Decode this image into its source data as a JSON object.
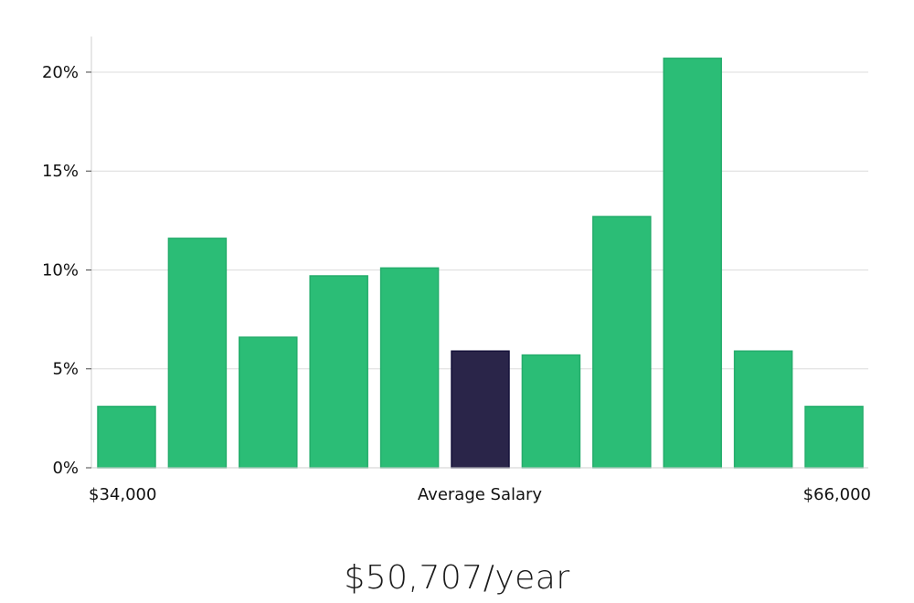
{
  "chart_data": {
    "type": "bar",
    "title": "",
    "xlabel": "Average Salary",
    "ylabel": "",
    "x_range_labels": {
      "min": "$34,000",
      "max": "$66,000"
    },
    "ylim": [
      0,
      21.8
    ],
    "yticks": [
      0,
      5,
      10,
      15,
      20
    ],
    "ytick_labels": [
      "0%",
      "5%",
      "10%",
      "15%",
      "20%"
    ],
    "grid": true,
    "values": [
      3.1,
      11.6,
      6.6,
      9.7,
      10.1,
      5.9,
      5.7,
      12.7,
      20.7,
      5.9,
      3.1
    ],
    "highlight_index": 5,
    "colors": {
      "bar": "#2bbd76",
      "bar_border": "#25ad6c",
      "highlight": "#2a2549",
      "highlight_border": "#15123a",
      "grid": "#dcdcdc",
      "axis": "#cfcfcf"
    }
  },
  "summary": {
    "salary_text": "$50,707/year"
  }
}
